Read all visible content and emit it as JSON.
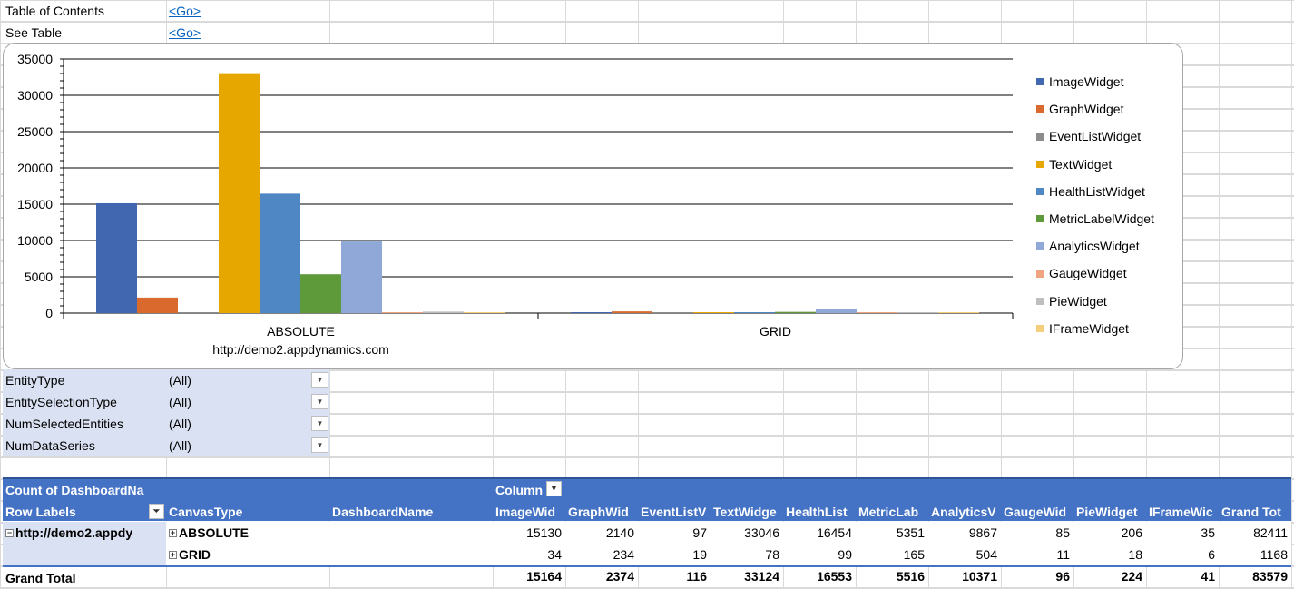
{
  "top_links": [
    {
      "label": "Table of Contents",
      "link": "<Go>"
    },
    {
      "label": "See Table",
      "link": "<Go>"
    }
  ],
  "chart_data": {
    "type": "bar",
    "categories": [
      "ABSOLUTE",
      "GRID"
    ],
    "category_sublabels": [
      "http://demo2.appdynamics.com",
      ""
    ],
    "ylim": [
      0,
      35000
    ],
    "yticks": [
      0,
      5000,
      10000,
      15000,
      20000,
      25000,
      30000,
      35000
    ],
    "grid": true,
    "legend_position": "right",
    "series": [
      {
        "name": "ImageWidget",
        "color": "#4167b0",
        "values": [
          15130,
          34
        ]
      },
      {
        "name": "GraphWidget",
        "color": "#d9692c",
        "values": [
          2140,
          234
        ]
      },
      {
        "name": "EventListWidget",
        "color": "#8c8c8c",
        "values": [
          97,
          19
        ]
      },
      {
        "name": "TextWidget",
        "color": "#e6a800",
        "values": [
          33046,
          78
        ]
      },
      {
        "name": "HealthListWidget",
        "color": "#4f87c5",
        "values": [
          16454,
          99
        ]
      },
      {
        "name": "MetricLabelWidget",
        "color": "#5e9a3a",
        "values": [
          5351,
          165
        ]
      },
      {
        "name": "AnalyticsWidget",
        "color": "#8fa8d8",
        "values": [
          9867,
          504
        ]
      },
      {
        "name": "GaugeWidget",
        "color": "#f0a47f",
        "values": [
          85,
          11
        ]
      },
      {
        "name": "PieWidget",
        "color": "#bfbfbf",
        "values": [
          206,
          18
        ]
      },
      {
        "name": "IFrameWidget",
        "color": "#f5cf7a",
        "values": [
          35,
          6
        ]
      }
    ]
  },
  "filters": [
    {
      "label": "EntityType",
      "value": "(All)"
    },
    {
      "label": "EntitySelectionType",
      "value": "(All)"
    },
    {
      "label": "NumSelectedEntities",
      "value": "(All)"
    },
    {
      "label": "NumDataSeries",
      "value": "(All)"
    }
  ],
  "pivot": {
    "header1": {
      "measure": "Count of DashboardNa",
      "columns": "Column"
    },
    "header2": {
      "row_labels": "Row Labels",
      "canvas_type": "CanvasType",
      "dashboard_name": "DashboardName",
      "columns": [
        "ImageWid",
        "GraphWid",
        "EventListV",
        "TextWidge",
        "HealthList",
        "MetricLab",
        "AnalyticsV",
        "GaugeWid",
        "PieWidget",
        "IFrameWic",
        "Grand Tot"
      ]
    },
    "rows": [
      {
        "label": "http://demo2.appdy",
        "canvas": "ABSOLUTE",
        "values": [
          "15130",
          "2140",
          "97",
          "33046",
          "16454",
          "5351",
          "9867",
          "85",
          "206",
          "35",
          "82411"
        ]
      },
      {
        "label": "",
        "canvas": "GRID",
        "values": [
          "34",
          "234",
          "19",
          "78",
          "99",
          "165",
          "504",
          "11",
          "18",
          "6",
          "1168"
        ]
      }
    ],
    "grand_total": {
      "label": "Grand Total",
      "values": [
        "15164",
        "2374",
        "116",
        "33124",
        "16553",
        "5516",
        "10371",
        "96",
        "224",
        "41",
        "83579"
      ]
    }
  }
}
